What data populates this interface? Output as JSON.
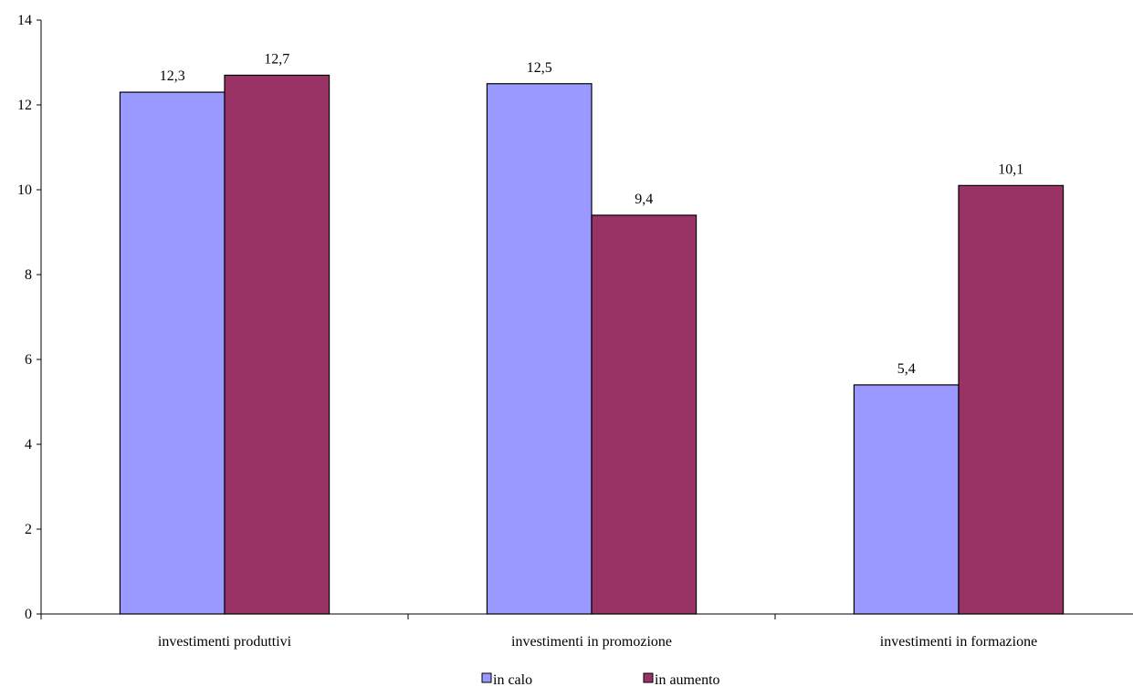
{
  "chart_data": {
    "type": "bar",
    "categories": [
      "investimenti produttivi",
      "investimenti in promozione",
      "investimenti in formazione"
    ],
    "series": [
      {
        "name": "in calo",
        "values": [
          12.3,
          12.5,
          5.4
        ],
        "labels": [
          "12,3",
          "12,5",
          "5,4"
        ],
        "color": "#9999FF"
      },
      {
        "name": "in aumento",
        "values": [
          12.7,
          9.4,
          10.1
        ],
        "labels": [
          "12,7",
          "9,4",
          "10,1"
        ],
        "color": "#993366"
      }
    ],
    "ylim": [
      0,
      14
    ],
    "yticks": [
      0,
      2,
      4,
      6,
      8,
      10,
      12,
      14
    ],
    "grid": false,
    "legend_position": "bottom",
    "title": "",
    "xlabel": "",
    "ylabel": ""
  }
}
